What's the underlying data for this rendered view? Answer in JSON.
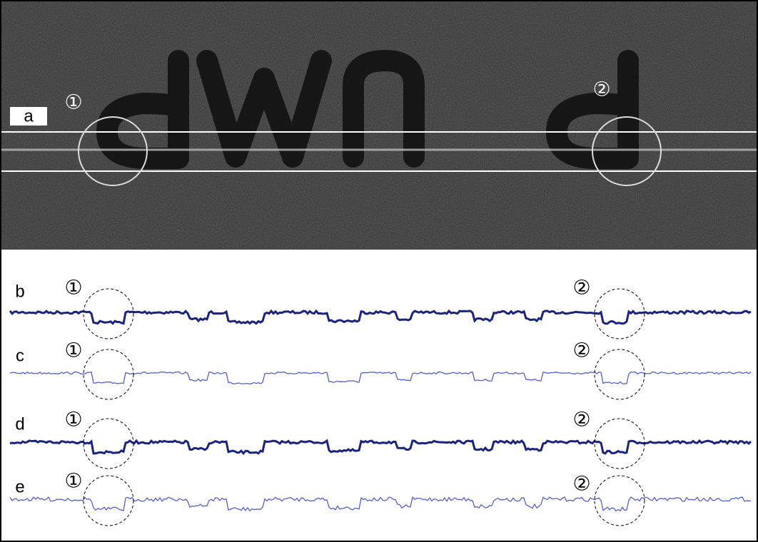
{
  "panels": [
    {
      "label": "a",
      "markers": [
        "①",
        "②"
      ]
    },
    {
      "label": "b",
      "markers": [
        "①",
        "②"
      ]
    },
    {
      "label": "c",
      "markers": [
        "①",
        "②"
      ]
    },
    {
      "label": "d",
      "markers": [
        "①",
        "②"
      ]
    },
    {
      "label": "e",
      "markers": [
        "①",
        "②"
      ]
    }
  ]
}
